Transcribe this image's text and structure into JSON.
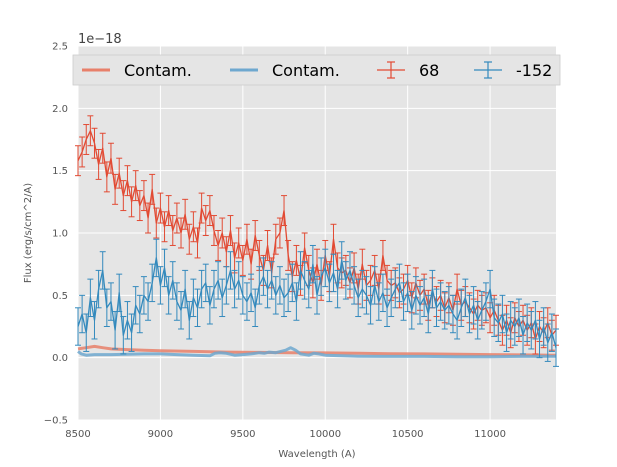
{
  "chart_data": {
    "type": "line",
    "title": "",
    "offset_text": "1e−18",
    "xlabel": "Wavelength (A)",
    "ylabel": "Flux (erg/s/cm^2/A)",
    "xlim": [
      8500,
      11400
    ],
    "ylim": [
      -0.5,
      2.5
    ],
    "xticks": [
      8500,
      9000,
      9500,
      10000,
      10500,
      11000
    ],
    "xtick_labels": [
      "8500",
      "9000",
      "9500",
      "10000",
      "10500",
      "11000"
    ],
    "yticks": [
      -0.5,
      0.0,
      0.5,
      1.0,
      1.5,
      2.0,
      2.5
    ],
    "ytick_labels": [
      "−0.5",
      "0.0",
      "0.5",
      "1.0",
      "1.5",
      "2.0",
      "2.5"
    ],
    "grid": true,
    "legend_position": "top",
    "legend": [
      {
        "label": "Contam.",
        "kind": "line",
        "color": "#e8806a"
      },
      {
        "label": "Contam.",
        "kind": "line",
        "color": "#6ea8cf"
      },
      {
        "label": "68",
        "kind": "errorbar",
        "color": "#e24a33"
      },
      {
        "label": "-152",
        "kind": "errorbar",
        "color": "#348abd"
      }
    ],
    "series": [
      {
        "name": "68",
        "color": "#e24a33",
        "x": [
          8500,
          8525,
          8550,
          8575,
          8600,
          8625,
          8650,
          8675,
          8700,
          8725,
          8750,
          8775,
          8800,
          8825,
          8850,
          8875,
          8900,
          8925,
          8950,
          8975,
          9000,
          9025,
          9050,
          9075,
          9100,
          9125,
          9150,
          9175,
          9200,
          9225,
          9250,
          9275,
          9300,
          9325,
          9350,
          9375,
          9400,
          9425,
          9450,
          9475,
          9500,
          9525,
          9550,
          9575,
          9600,
          9625,
          9650,
          9675,
          9700,
          9725,
          9750,
          9775,
          9800,
          9825,
          9850,
          9875,
          9900,
          9925,
          9950,
          9975,
          10000,
          10025,
          10050,
          10075,
          10100,
          10125,
          10150,
          10175,
          10200,
          10225,
          10250,
          10275,
          10300,
          10325,
          10350,
          10375,
          10400,
          10425,
          10450,
          10475,
          10500,
          10525,
          10550,
          10575,
          10600,
          10625,
          10650,
          10675,
          10700,
          10725,
          10750,
          10775,
          10800,
          10825,
          10850,
          10875,
          10900,
          10925,
          10950,
          10975,
          11000,
          11025,
          11050,
          11075,
          11100,
          11125,
          11150,
          11175,
          11200,
          11225,
          11250,
          11275,
          11300,
          11325,
          11350,
          11375,
          11400
        ],
        "y": [
          1.58,
          1.65,
          1.75,
          1.82,
          1.72,
          1.55,
          1.68,
          1.45,
          1.6,
          1.35,
          1.48,
          1.3,
          1.42,
          1.25,
          1.38,
          1.22,
          1.3,
          1.12,
          1.35,
          1.08,
          1.2,
          1.05,
          1.18,
          1.02,
          1.12,
          1.0,
          1.15,
          0.95,
          1.05,
          0.92,
          1.2,
          1.1,
          1.18,
          1.02,
          0.9,
          1.0,
          0.85,
          1.02,
          0.8,
          0.92,
          0.78,
          0.95,
          0.75,
          0.98,
          0.82,
          0.7,
          0.9,
          0.68,
          0.95,
          1.0,
          1.18,
          0.82,
          0.65,
          0.78,
          0.62,
          0.88,
          0.7,
          0.6,
          0.75,
          0.58,
          0.82,
          0.65,
          0.95,
          0.72,
          0.68,
          0.7,
          0.6,
          0.72,
          0.55,
          0.75,
          0.58,
          0.62,
          0.7,
          0.55,
          0.82,
          0.62,
          0.58,
          0.6,
          0.52,
          0.55,
          0.62,
          0.48,
          0.6,
          0.5,
          0.55,
          0.42,
          0.52,
          0.45,
          0.5,
          0.4,
          0.48,
          0.38,
          0.55,
          0.42,
          0.45,
          0.4,
          0.35,
          0.42,
          0.38,
          0.4,
          0.32,
          0.38,
          0.3,
          0.22,
          0.3,
          0.2,
          0.32,
          0.25,
          0.3,
          0.22,
          0.28,
          0.15,
          0.25,
          0.2,
          0.28,
          0.18,
          0.22
        ],
        "yerr": 0.12
      },
      {
        "name": "-152",
        "color": "#348abd",
        "x": [
          8500,
          8525,
          8550,
          8575,
          8600,
          8625,
          8650,
          8675,
          8700,
          8725,
          8750,
          8775,
          8800,
          8825,
          8850,
          8875,
          8900,
          8925,
          8950,
          8975,
          9000,
          9025,
          9050,
          9075,
          9100,
          9125,
          9150,
          9175,
          9200,
          9225,
          9250,
          9275,
          9300,
          9325,
          9350,
          9375,
          9400,
          9425,
          9450,
          9475,
          9500,
          9525,
          9550,
          9575,
          9600,
          9625,
          9650,
          9675,
          9700,
          9725,
          9750,
          9775,
          9800,
          9825,
          9850,
          9875,
          9900,
          9925,
          9950,
          9975,
          10000,
          10025,
          10050,
          10075,
          10100,
          10125,
          10150,
          10175,
          10200,
          10225,
          10250,
          10275,
          10300,
          10325,
          10350,
          10375,
          10400,
          10425,
          10450,
          10475,
          10500,
          10525,
          10550,
          10575,
          10600,
          10625,
          10650,
          10675,
          10700,
          10725,
          10750,
          10775,
          10800,
          10825,
          10850,
          10875,
          10900,
          10925,
          10950,
          10975,
          11000,
          11025,
          11050,
          11075,
          11100,
          11125,
          11150,
          11175,
          11200,
          11225,
          11250,
          11275,
          11300,
          11325,
          11350,
          11375,
          11400
        ],
        "y": [
          0.25,
          0.35,
          0.2,
          0.48,
          0.3,
          0.55,
          0.7,
          0.4,
          0.45,
          0.22,
          0.52,
          0.18,
          0.3,
          0.2,
          0.42,
          0.35,
          0.5,
          0.45,
          0.6,
          0.8,
          0.58,
          0.72,
          0.5,
          0.62,
          0.45,
          0.38,
          0.55,
          0.3,
          0.48,
          0.4,
          0.55,
          0.6,
          0.42,
          0.55,
          0.62,
          0.48,
          0.58,
          0.7,
          0.55,
          0.62,
          0.5,
          0.45,
          0.52,
          0.4,
          0.58,
          0.65,
          0.55,
          0.62,
          0.5,
          0.58,
          0.48,
          0.52,
          0.6,
          0.45,
          0.7,
          0.62,
          0.55,
          0.75,
          0.5,
          0.65,
          0.72,
          0.6,
          0.68,
          0.55,
          0.78,
          0.62,
          0.7,
          0.58,
          0.48,
          0.55,
          0.5,
          0.42,
          0.58,
          0.45,
          0.52,
          0.4,
          0.48,
          0.55,
          0.6,
          0.45,
          0.52,
          0.38,
          0.5,
          0.42,
          0.48,
          0.35,
          0.55,
          0.4,
          0.45,
          0.38,
          0.42,
          0.35,
          0.3,
          0.4,
          0.48,
          0.35,
          0.42,
          0.3,
          0.38,
          0.45,
          0.55,
          0.32,
          0.28,
          0.35,
          0.2,
          0.3,
          0.25,
          0.32,
          0.18,
          0.28,
          0.22,
          0.3,
          0.15,
          0.25,
          0.12,
          0.2,
          0.08
        ],
        "yerr": 0.15
      },
      {
        "name": "Contam.",
        "color": "#e8806a",
        "x": [
          8500,
          8550,
          8600,
          8650,
          8700,
          8800,
          8900,
          9000,
          9200,
          9400,
          9600,
          9800,
          10000,
          10200,
          10400,
          10600,
          10800,
          11000,
          11200,
          11400
        ],
        "y": [
          0.07,
          0.08,
          0.09,
          0.08,
          0.07,
          0.065,
          0.06,
          0.055,
          0.05,
          0.045,
          0.042,
          0.04,
          0.038,
          0.035,
          0.032,
          0.03,
          0.028,
          0.025,
          0.022,
          0.02
        ]
      },
      {
        "name": "Contam.",
        "color": "#6ea8cf",
        "x": [
          8500,
          8520,
          8550,
          8600,
          8700,
          8800,
          8900,
          9000,
          9100,
          9200,
          9300,
          9330,
          9360,
          9400,
          9450,
          9500,
          9550,
          9600,
          9630,
          9660,
          9700,
          9730,
          9760,
          9790,
          9820,
          9850,
          9900,
          9930,
          9960,
          10000,
          10100,
          10200,
          10400,
          10600,
          10800,
          11000,
          11200,
          11400
        ],
        "y": [
          0.05,
          0.03,
          0.02,
          0.025,
          0.025,
          0.028,
          0.03,
          0.03,
          0.025,
          0.02,
          0.015,
          0.035,
          0.04,
          0.035,
          0.02,
          0.025,
          0.03,
          0.04,
          0.035,
          0.045,
          0.04,
          0.05,
          0.06,
          0.08,
          0.06,
          0.03,
          0.02,
          0.035,
          0.03,
          0.02,
          0.015,
          0.012,
          0.01,
          0.01,
          0.008,
          0.008,
          0.01,
          0.01
        ]
      }
    ]
  }
}
